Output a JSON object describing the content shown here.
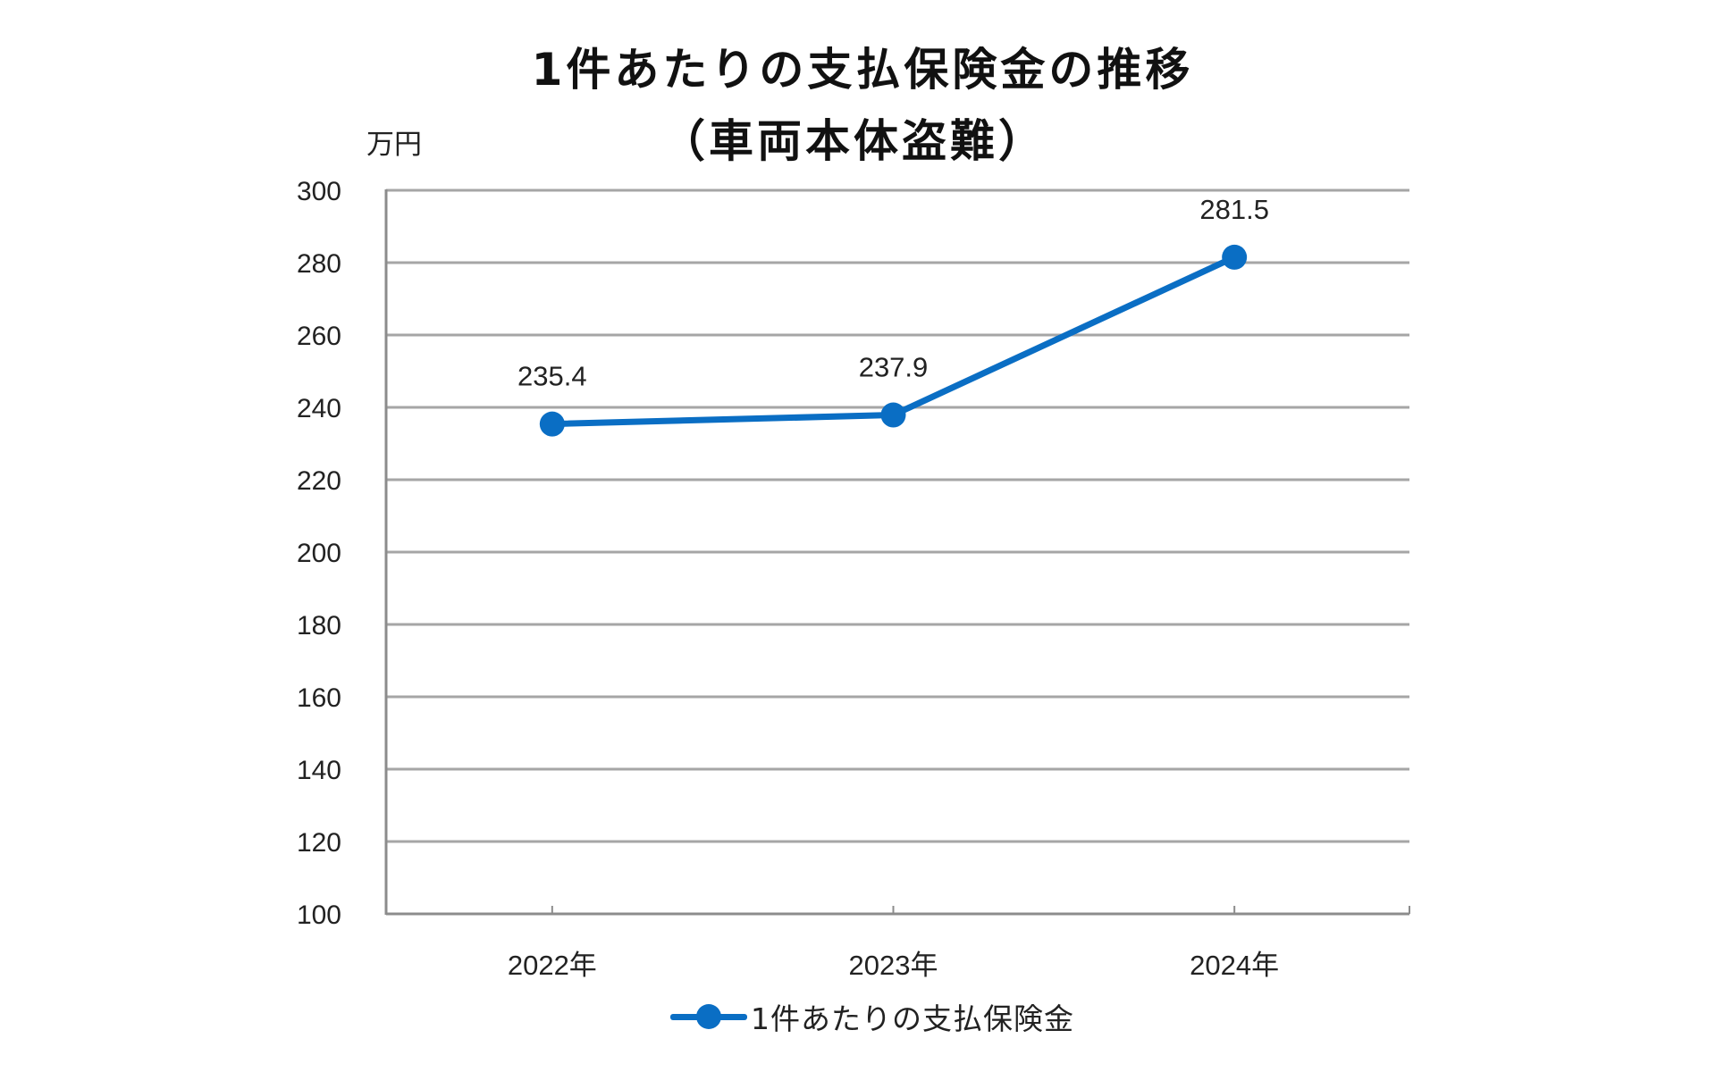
{
  "chart_data": {
    "type": "line",
    "title": "1件あたりの支払保険金の推移",
    "subtitle": "（車両本体盗難）",
    "xlabel": "",
    "ylabel": "万円",
    "categories": [
      "2022年",
      "2023年",
      "2024年"
    ],
    "series": [
      {
        "name": "1件あたりの支払保険金",
        "values": [
          235.4,
          237.9,
          281.5
        ],
        "data_labels": [
          "235.4",
          "237.9",
          "281.5"
        ],
        "color": "#0a6ec4",
        "marker": "circle"
      }
    ],
    "ylim": [
      100,
      300
    ],
    "yticks": [
      100,
      120,
      140,
      160,
      180,
      200,
      220,
      240,
      260,
      280,
      300
    ],
    "grid": true,
    "legend_position": "bottom"
  },
  "header": {
    "title": "1件あたりの支払保険金の推移",
    "subtitle": "（車両本体盗難）",
    "unit": "万円"
  },
  "legend": {
    "label": "1件あたりの支払保険金"
  },
  "colors": {
    "series": "#0a6ec4",
    "grid": "#a6a6a6",
    "axis": "#8c8c8c",
    "text": "#222222"
  }
}
